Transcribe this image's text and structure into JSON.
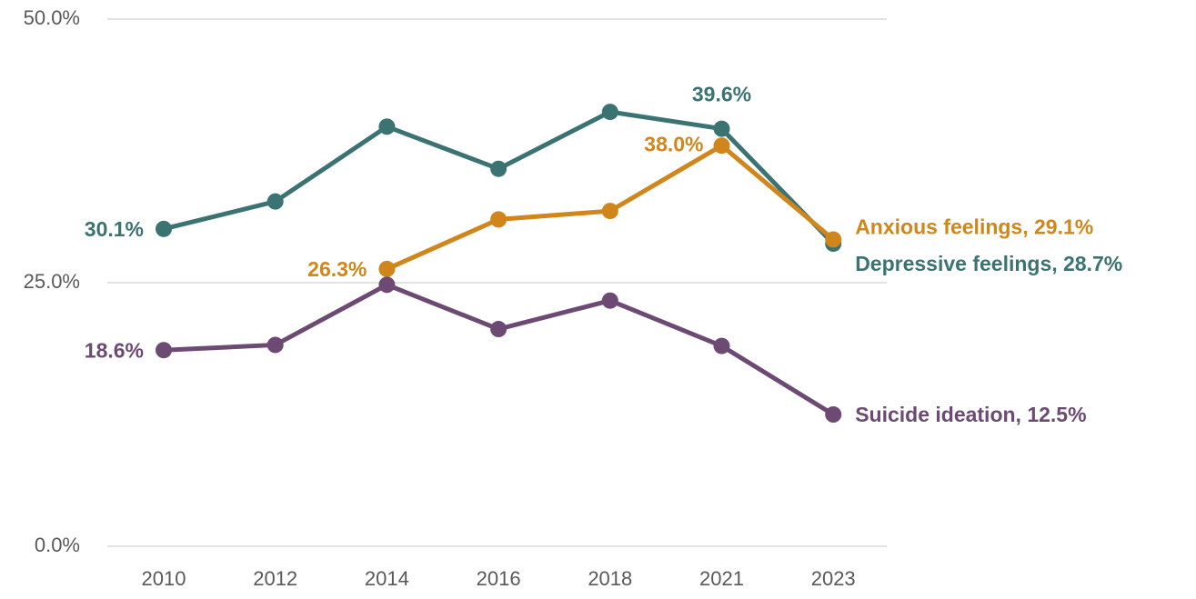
{
  "chart_data": {
    "type": "line",
    "categories": [
      "2010",
      "2012",
      "2014",
      "2016",
      "2018",
      "2021",
      "2023"
    ],
    "ylim": [
      0,
      50
    ],
    "yticks": [
      {
        "value": 0,
        "label": "0.0%"
      },
      {
        "value": 25,
        "label": "25.0%"
      },
      {
        "value": 50,
        "label": "50.0%"
      }
    ],
    "grid": true,
    "series": [
      {
        "name": "Depressive feelings",
        "color": "#3b7373",
        "values": [
          30.1,
          32.7,
          39.8,
          35.8,
          41.2,
          39.6,
          28.7
        ],
        "value_labels": [
          "30.1%",
          null,
          null,
          null,
          null,
          "39.6%",
          "Depressive feelings, 28.7%"
        ]
      },
      {
        "name": "Anxious feelings",
        "color": "#d0861a",
        "values": [
          null,
          null,
          26.3,
          31.0,
          31.8,
          38.0,
          29.1
        ],
        "value_labels": [
          null,
          null,
          "26.3%",
          null,
          null,
          "38.0%",
          "Anxious feelings, 29.1%"
        ]
      },
      {
        "name": "Suicide ideation",
        "color": "#6c4a73",
        "values": [
          18.6,
          19.1,
          24.8,
          20.6,
          23.3,
          19.0,
          12.5
        ],
        "value_labels": [
          "18.6%",
          null,
          null,
          null,
          null,
          null,
          "Suicide ideation, 12.5%"
        ]
      }
    ]
  }
}
